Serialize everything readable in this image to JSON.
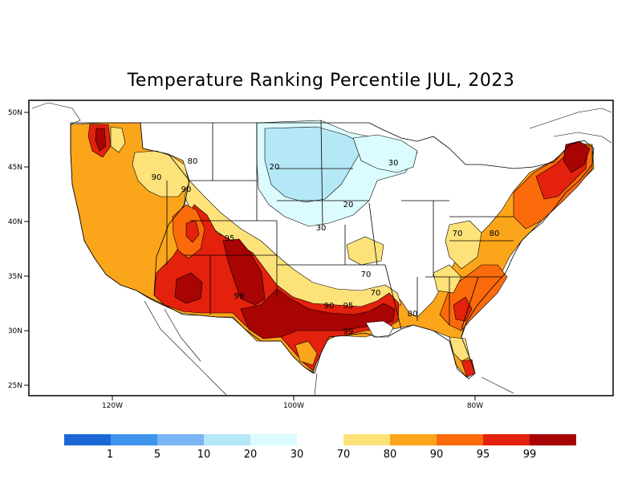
{
  "map": {
    "title": "Temperature Ranking Percentile JUL, 2023",
    "lat_ticks": [
      "50N",
      "45N",
      "40N",
      "35N",
      "30N",
      "25N"
    ],
    "lon_ticks": [
      "120W",
      "100W",
      "80W"
    ],
    "contour_labels": [
      "20",
      "20",
      "30",
      "30",
      "70",
      "70",
      "70",
      "80",
      "80",
      "80",
      "90",
      "90",
      "90",
      "95",
      "95",
      "99",
      "99"
    ],
    "legend": {
      "cool_colors": [
        "#1c67d6",
        "#3f94ec",
        "#7ab6f3",
        "#b5e8f6",
        "#dcfbfe"
      ],
      "warm_colors": [
        "#fde27a",
        "#fba51b",
        "#fb6a0b",
        "#e3210c",
        "#a80404"
      ],
      "labels": [
        "1",
        "5",
        "10",
        "20",
        "30",
        "70",
        "80",
        "90",
        "95",
        "99"
      ]
    },
    "colors": {
      "p20_30": "#dcfbfe",
      "p10_20": "#b5e8f6",
      "p70_80": "#fde27a",
      "p80_90": "#fba51b",
      "p90_95": "#fb6a0b",
      "p95_99": "#e3210c",
      "p99": "#a80404"
    }
  }
}
